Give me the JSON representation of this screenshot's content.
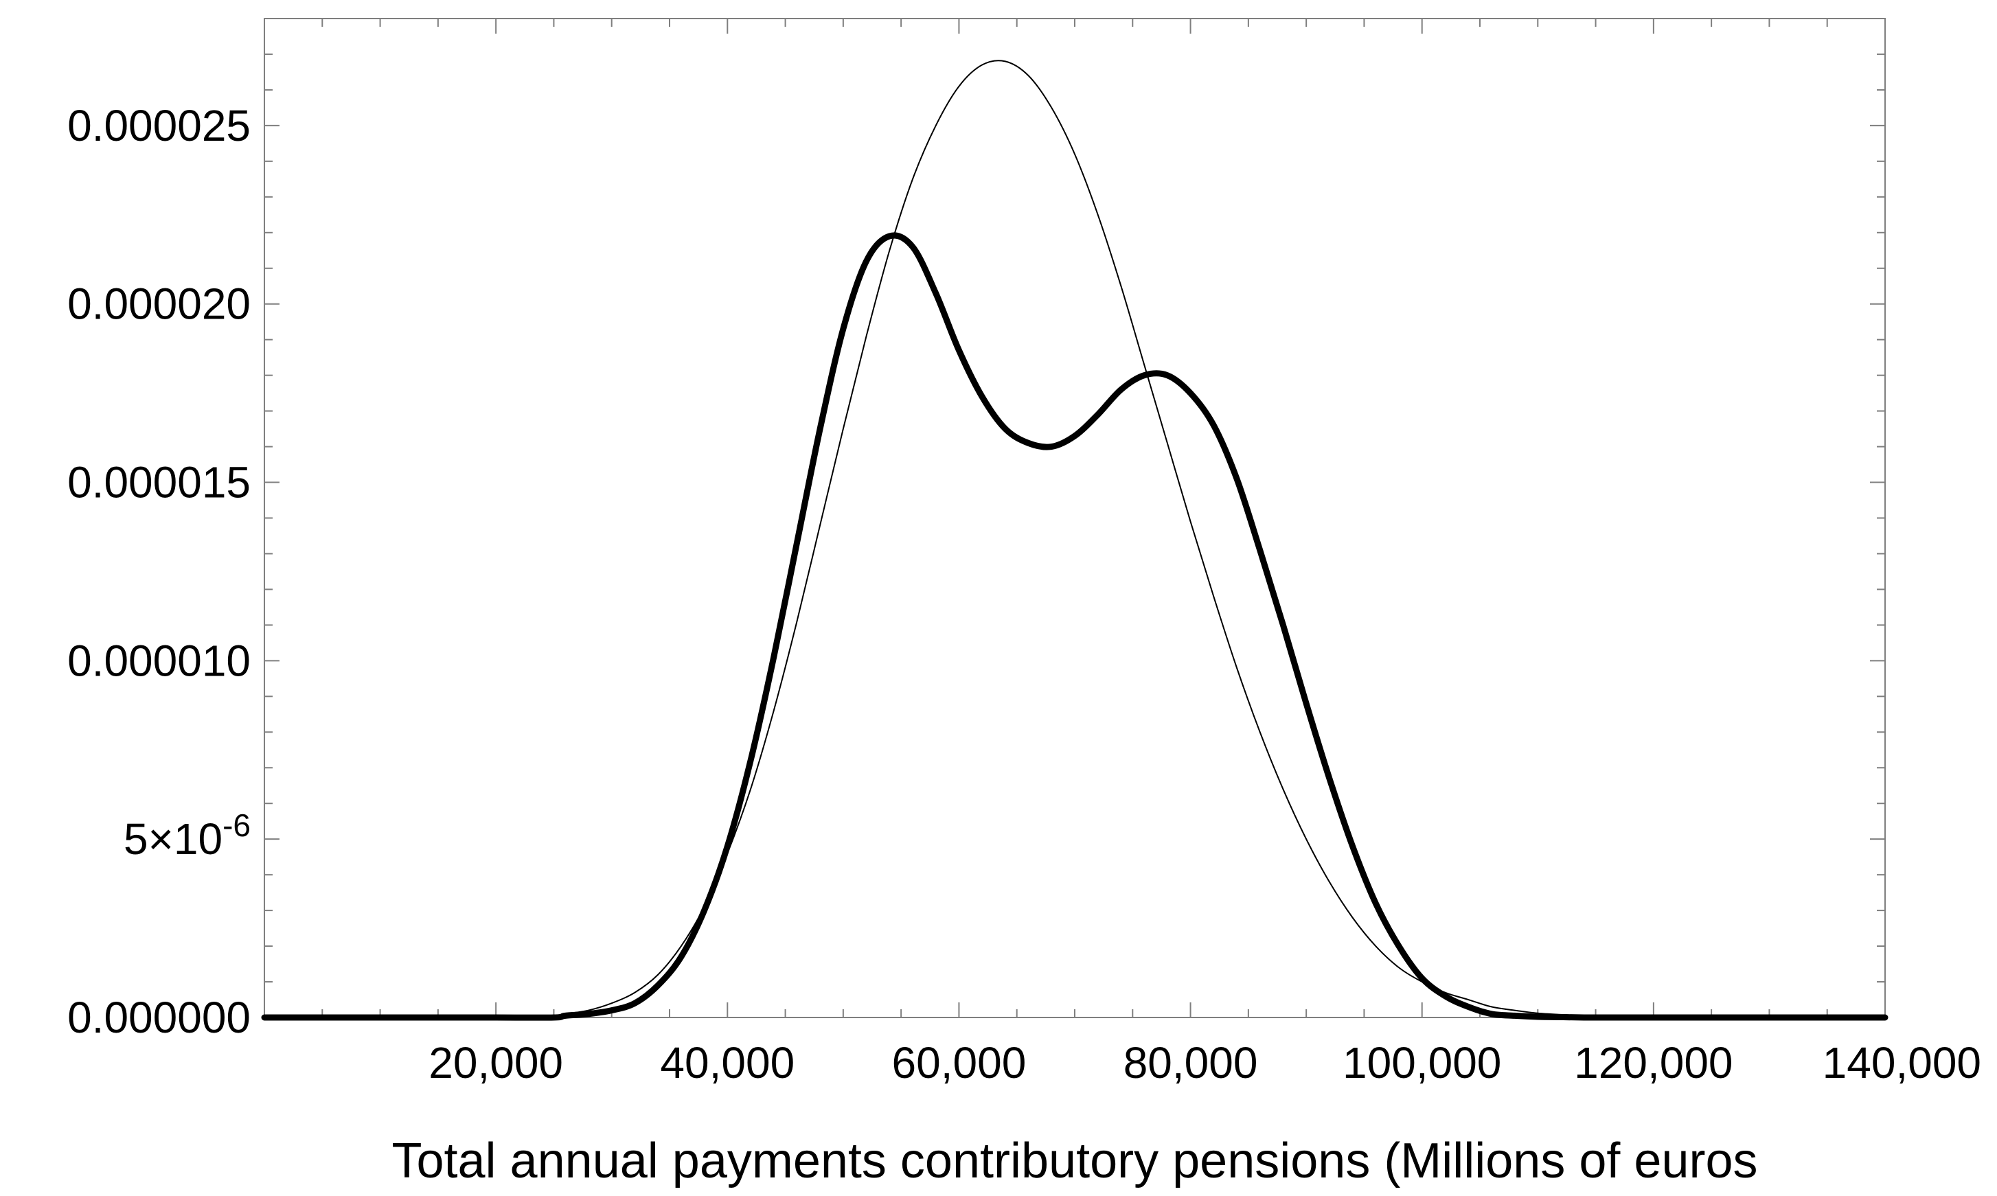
{
  "chart_data": {
    "type": "line",
    "title": "",
    "xlabel": "Total annual payments contributory pensions (Millions of euros",
    "ylabel": "",
    "xlim": [
      0,
      140000
    ],
    "ylim": [
      0,
      2.8e-05
    ],
    "grid": false,
    "x_ticks": [
      {
        "value": 20000,
        "label": "20,000"
      },
      {
        "value": 40000,
        "label": "40,000"
      },
      {
        "value": 60000,
        "label": "60,000"
      },
      {
        "value": 80000,
        "label": "80,000"
      },
      {
        "value": 100000,
        "label": "100,000"
      },
      {
        "value": 120000,
        "label": "120,000"
      },
      {
        "value": 140000,
        "label": "140,000"
      }
    ],
    "y_ticks": [
      {
        "value": 0,
        "label": "0.000000"
      },
      {
        "value": 5e-06,
        "label": "5×10",
        "exponent": "-6"
      },
      {
        "value": 1e-05,
        "label": "0.000010"
      },
      {
        "value": 1.5e-05,
        "label": "0.000015"
      },
      {
        "value": 2e-05,
        "label": "0.000020"
      },
      {
        "value": 2.5e-05,
        "label": "0.000025"
      }
    ],
    "series": [
      {
        "style": "thick",
        "stroke_width": 9,
        "x": [
          0,
          10000,
          20000,
          25000,
          26000,
          28000,
          30000,
          32000,
          34000,
          36000,
          38000,
          40000,
          42000,
          44000,
          46000,
          48000,
          50000,
          52000,
          54000,
          56000,
          58000,
          60000,
          62000,
          64000,
          66000,
          68000,
          70000,
          72000,
          74000,
          76000,
          78000,
          80000,
          82000,
          84000,
          86000,
          88000,
          90000,
          92000,
          94000,
          96000,
          98000,
          100000,
          102000,
          104000,
          106000,
          108000,
          110000,
          112000,
          114000,
          116000,
          118000,
          120000,
          130000,
          140000
        ],
        "values": [
          0,
          0,
          0,
          0,
          5e-08,
          1e-07,
          2e-07,
          4e-07,
          9e-07,
          1.7e-06,
          3e-06,
          4.8e-06,
          7.2e-06,
          1.01e-05,
          1.33e-05,
          1.65e-05,
          1.93e-05,
          2.12e-05,
          2.19e-05,
          2.16e-05,
          2.03e-05,
          1.87e-05,
          1.74e-05,
          1.65e-05,
          1.61e-05,
          1.6e-05,
          1.63e-05,
          1.69e-05,
          1.76e-05,
          1.8e-05,
          1.8e-05,
          1.75e-05,
          1.66e-05,
          1.51e-05,
          1.31e-05,
          1.1e-05,
          8.8e-06,
          6.7e-06,
          4.8e-06,
          3.2e-06,
          2e-06,
          1.1e-06,
          6e-07,
          3e-07,
          1e-07,
          5e-08,
          2e-08,
          1e-08,
          0,
          0,
          0,
          0,
          0,
          0
        ]
      },
      {
        "style": "thin",
        "stroke_width": 2,
        "x": [
          26000,
          28000,
          30000,
          32000,
          34000,
          36000,
          38000,
          40000,
          42000,
          44000,
          46000,
          48000,
          50000,
          52000,
          54000,
          56000,
          58000,
          60000,
          62000,
          64000,
          66000,
          68000,
          70000,
          72000,
          74000,
          76000,
          78000,
          80000,
          82000,
          84000,
          86000,
          88000,
          90000,
          92000,
          94000,
          96000,
          98000,
          100000,
          102000,
          104000,
          106000,
          108000,
          110000,
          112000,
          114000,
          116000,
          118000,
          120000,
          122000,
          124000,
          126000
        ],
        "values": [
          1e-07,
          2e-07,
          4e-07,
          7e-07,
          1.2e-06,
          2e-06,
          3.1e-06,
          4.6e-06,
          6.4e-06,
          8.6e-06,
          1.11e-05,
          1.38e-05,
          1.65e-05,
          1.91e-05,
          2.15e-05,
          2.35e-05,
          2.5e-05,
          2.61e-05,
          2.67e-05,
          2.68e-05,
          2.64e-05,
          2.55e-05,
          2.42e-05,
          2.25e-05,
          2.05e-05,
          1.83e-05,
          1.61e-05,
          1.39e-05,
          1.18e-05,
          9.8e-06,
          8e-06,
          6.4e-06,
          5e-06,
          3.8e-06,
          2.8e-06,
          2e-06,
          1.4e-06,
          1e-06,
          7e-07,
          5e-07,
          3e-07,
          2e-07,
          1.2e-07,
          8e-08,
          5e-08,
          3e-08,
          2e-08,
          1e-08,
          0,
          0,
          0
        ]
      }
    ]
  }
}
